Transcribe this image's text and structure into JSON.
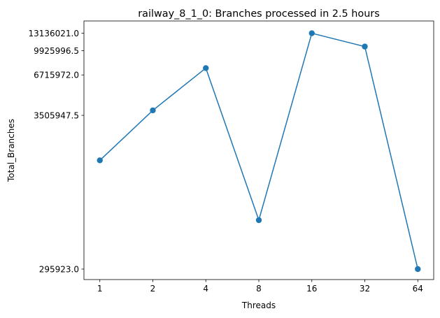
{
  "chart_data": {
    "type": "line",
    "title": "railway_8_1_0: Branches processed in 2.5 hours",
    "xlabel": "Threads",
    "ylabel": "Total_Branches",
    "x_scale": "log2",
    "y_scale": "log",
    "grid": false,
    "legend": "none",
    "categories": [
      "1",
      "2",
      "4",
      "8",
      "16",
      "32",
      "64"
    ],
    "x": [
      1,
      2,
      4,
      8,
      16,
      32,
      64
    ],
    "yticks": [
      295923.0,
      3505947.5,
      6715972.0,
      9925996.5,
      13136021.0
    ],
    "ytick_labels": [
      "295923.0",
      "3505947.5",
      "6715972.0",
      "9925996.5",
      "13136021.0"
    ],
    "ylim": [
      250000,
      16000000
    ],
    "series": [
      {
        "color": "#1f77b4",
        "values": [
          1700000,
          3800000,
          7500000,
          650000,
          13136021,
          10600000,
          295923
        ]
      }
    ]
  }
}
